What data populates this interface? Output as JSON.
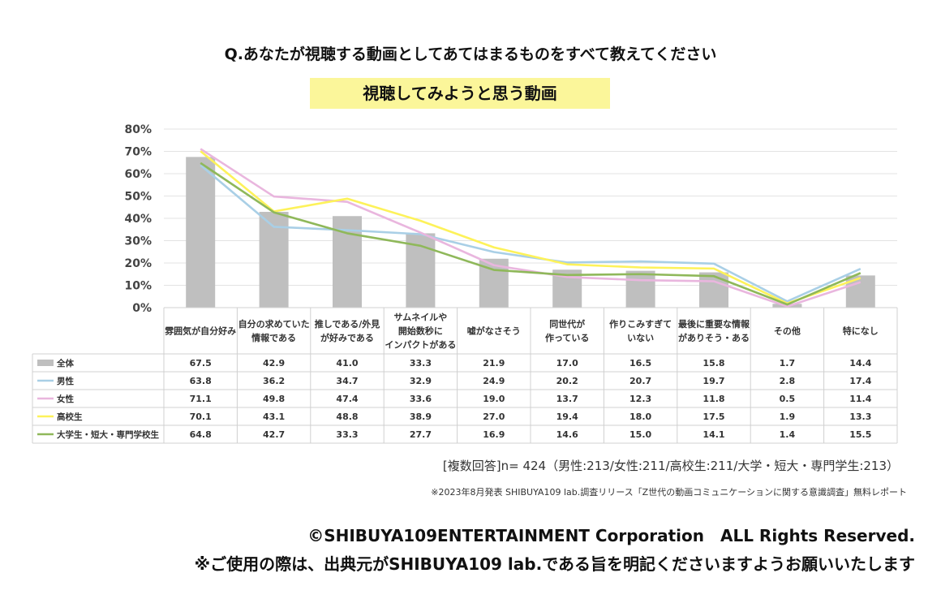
{
  "question": "Q.あなたが視聴する動画としてあてはまるものをすべて教えてください",
  "subtitle": "視聴してみようと思う動画",
  "sample_note": "[複数回答]n= 424（男性:213/女性:211/高校生:211/大学・短大・専門学生:213）",
  "source_note": "※2023年8月発表 SHIBUYA109 lab.調査リリース「Z世代の動画コミュニケーションに関する意識調査」無料レポート",
  "copyright": "©SHIBUYA109ENTERTAINMENT Corporation　ALL Rights Reserved.",
  "usage_notice": "※ご使用の際は、出典元がSHIBUYA109 lab.である旨を明記くださいますようお願いいたします",
  "chart_data": {
    "type": "bar",
    "ylim": [
      0,
      80
    ],
    "yticks": [
      "0%",
      "10%",
      "20%",
      "30%",
      "40%",
      "50%",
      "60%",
      "70%",
      "80%"
    ],
    "grid": true,
    "categories": [
      [
        "雰囲気が自分好み"
      ],
      [
        "自分の求めていた",
        "情報である"
      ],
      [
        "推しである/外見",
        "が好みである"
      ],
      [
        "サムネイルや",
        "開始数秒に",
        "インパクトがある"
      ],
      [
        "嘘がなさそう"
      ],
      [
        "同世代が",
        "作っている"
      ],
      [
        "作りこみすぎて",
        "いない"
      ],
      [
        "最後に重要な情報",
        "がありそう・ある"
      ],
      [
        "その他"
      ],
      [
        "特になし"
      ]
    ],
    "series": [
      {
        "name": "全体",
        "kind": "bar",
        "color": "#bfbfbf",
        "values": [
          67.5,
          42.9,
          41.0,
          33.3,
          21.9,
          17.0,
          16.5,
          15.8,
          1.7,
          14.4
        ]
      },
      {
        "name": "男性",
        "kind": "line",
        "color": "#a9cfe6",
        "values": [
          63.8,
          36.2,
          34.7,
          32.9,
          24.9,
          20.2,
          20.7,
          19.7,
          2.8,
          17.4
        ]
      },
      {
        "name": "女性",
        "kind": "line",
        "color": "#e9b6de",
        "values": [
          71.1,
          49.8,
          47.4,
          33.6,
          19.0,
          13.7,
          12.3,
          11.8,
          0.5,
          11.4
        ]
      },
      {
        "name": "高校生",
        "kind": "line",
        "color": "#fdf25a",
        "values": [
          70.1,
          43.1,
          48.8,
          38.9,
          27.0,
          19.4,
          18.0,
          17.5,
          1.9,
          13.3
        ]
      },
      {
        "name": "大学生・短大・専門学校生",
        "kind": "line",
        "color": "#8fb85a",
        "values": [
          64.8,
          42.7,
          33.3,
          27.7,
          16.9,
          14.6,
          15.0,
          14.1,
          1.4,
          15.5
        ]
      }
    ]
  }
}
